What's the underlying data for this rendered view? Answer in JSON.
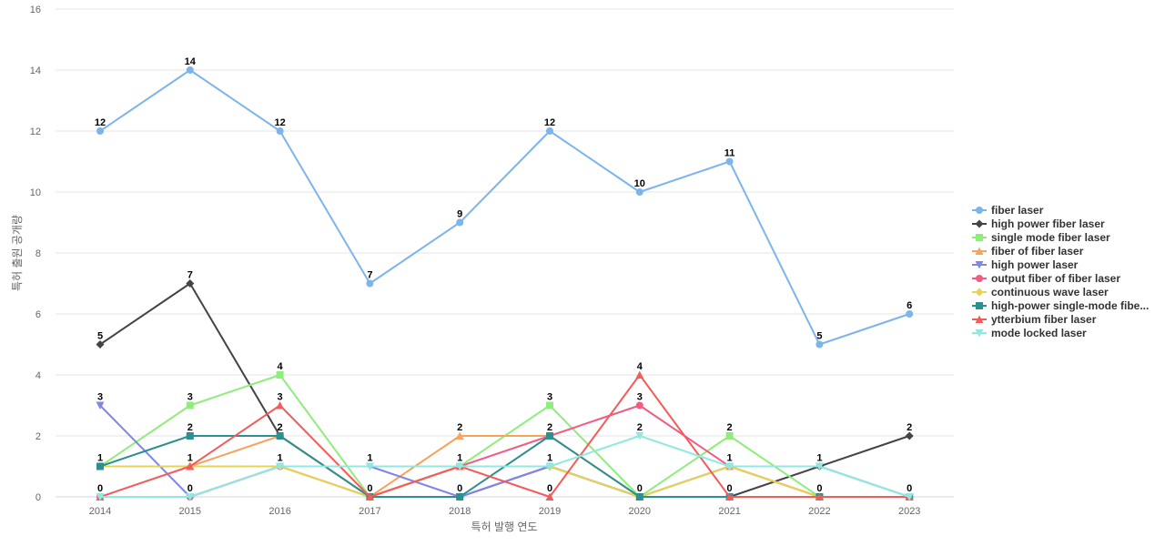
{
  "chart_data": {
    "type": "line",
    "title": "",
    "xlabel": "특허 발행 연도",
    "ylabel": "특허 출원 공개량",
    "categories": [
      "2014",
      "2015",
      "2016",
      "2017",
      "2018",
      "2019",
      "2020",
      "2021",
      "2022",
      "2023"
    ],
    "ylim": [
      0,
      16
    ],
    "yticks": [
      0,
      2,
      4,
      6,
      8,
      10,
      12,
      14,
      16
    ],
    "grid": true,
    "legend_position": "right",
    "series": [
      {
        "name": "fiber laser",
        "color": "#7cb5ec",
        "marker": "circle",
        "values": [
          12,
          14,
          12,
          7,
          9,
          12,
          10,
          11,
          5,
          6
        ]
      },
      {
        "name": "high power fiber laser",
        "color": "#434348",
        "marker": "diamond",
        "values": [
          5,
          7,
          2,
          0,
          0,
          1,
          0,
          0,
          1,
          2
        ]
      },
      {
        "name": "single mode fiber laser",
        "color": "#90ed7d",
        "marker": "square",
        "values": [
          1,
          3,
          4,
          0,
          1,
          3,
          0,
          2,
          0,
          0
        ]
      },
      {
        "name": "fiber of fiber laser",
        "color": "#f7a35c",
        "marker": "triangle",
        "values": [
          1,
          1,
          2,
          0,
          2,
          2,
          0,
          1,
          0,
          0
        ]
      },
      {
        "name": "high power laser",
        "color": "#8085e9",
        "marker": "triangle-down",
        "values": [
          3,
          0,
          1,
          1,
          0,
          1,
          0,
          1,
          1,
          0
        ]
      },
      {
        "name": "output fiber of fiber laser",
        "color": "#f15c80",
        "marker": "circle",
        "values": [
          0,
          0,
          1,
          0,
          1,
          2,
          3,
          1,
          0,
          0
        ]
      },
      {
        "name": "continuous wave laser",
        "color": "#e4d354",
        "marker": "diamond",
        "values": [
          1,
          1,
          1,
          0,
          1,
          1,
          0,
          1,
          0,
          0
        ]
      },
      {
        "name": "high-power single-mode fibe...",
        "color": "#2b908f",
        "marker": "square",
        "values": [
          1,
          2,
          2,
          0,
          0,
          2,
          0,
          0,
          0,
          0
        ]
      },
      {
        "name": "ytterbium fiber laser",
        "color": "#f45b5b",
        "marker": "triangle",
        "values": [
          0,
          1,
          3,
          0,
          1,
          0,
          4,
          0,
          0,
          0
        ]
      },
      {
        "name": "mode locked laser",
        "color": "#91e8e1",
        "marker": "triangle-down",
        "values": [
          0,
          0,
          1,
          1,
          1,
          1,
          2,
          1,
          1,
          0
        ]
      }
    ],
    "data_labels": [
      {
        "category": "2014",
        "value": 12,
        "text": "12"
      },
      {
        "category": "2015",
        "value": 14,
        "text": "14"
      },
      {
        "category": "2016",
        "value": 12,
        "text": "12"
      },
      {
        "category": "2017",
        "value": 7,
        "text": "7"
      },
      {
        "category": "2018",
        "value": 9,
        "text": "9"
      },
      {
        "category": "2019",
        "value": 12,
        "text": "12"
      },
      {
        "category": "2020",
        "value": 10,
        "text": "10"
      },
      {
        "category": "2021",
        "value": 11,
        "text": "11"
      },
      {
        "category": "2022",
        "value": 5,
        "text": "5"
      },
      {
        "category": "2023",
        "value": 6,
        "text": "6"
      },
      {
        "category": "2014",
        "value": 5,
        "text": "5"
      },
      {
        "category": "2015",
        "value": 7,
        "text": "7"
      },
      {
        "category": "2014",
        "value": 3,
        "text": "3"
      },
      {
        "category": "2015",
        "value": 3,
        "text": "3"
      },
      {
        "category": "2016",
        "value": 4,
        "text": "4"
      },
      {
        "category": "2016",
        "value": 3,
        "text": "3"
      },
      {
        "category": "2019",
        "value": 3,
        "text": "3"
      },
      {
        "category": "2020",
        "value": 4,
        "text": "4"
      },
      {
        "category": "2020",
        "value": 3,
        "text": "3"
      },
      {
        "category": "2015",
        "value": 2,
        "text": "2"
      },
      {
        "category": "2016",
        "value": 2,
        "text": "2"
      },
      {
        "category": "2018",
        "value": 2,
        "text": "2"
      },
      {
        "category": "2019",
        "value": 2,
        "text": "2"
      },
      {
        "category": "2020",
        "value": 2,
        "text": "2"
      },
      {
        "category": "2021",
        "value": 2,
        "text": "2"
      },
      {
        "category": "2023",
        "value": 2,
        "text": "2"
      },
      {
        "category": "2014",
        "value": 1,
        "text": "1"
      },
      {
        "category": "2015",
        "value": 1,
        "text": "1"
      },
      {
        "category": "2016",
        "value": 1,
        "text": "1"
      },
      {
        "category": "2017",
        "value": 1,
        "text": "1"
      },
      {
        "category": "2018",
        "value": 1,
        "text": "1"
      },
      {
        "category": "2019",
        "value": 1,
        "text": "1"
      },
      {
        "category": "2021",
        "value": 1,
        "text": "1"
      },
      {
        "category": "2022",
        "value": 1,
        "text": "1"
      },
      {
        "category": "2014",
        "value": 0,
        "text": "0"
      },
      {
        "category": "2015",
        "value": 0,
        "text": "0"
      },
      {
        "category": "2017",
        "value": 0,
        "text": "0"
      },
      {
        "category": "2018",
        "value": 0,
        "text": "0"
      },
      {
        "category": "2019",
        "value": 0,
        "text": "0"
      },
      {
        "category": "2020",
        "value": 0,
        "text": "0"
      },
      {
        "category": "2021",
        "value": 0,
        "text": "0"
      },
      {
        "category": "2022",
        "value": 0,
        "text": "0"
      },
      {
        "category": "2023",
        "value": 0,
        "text": "0"
      }
    ]
  }
}
